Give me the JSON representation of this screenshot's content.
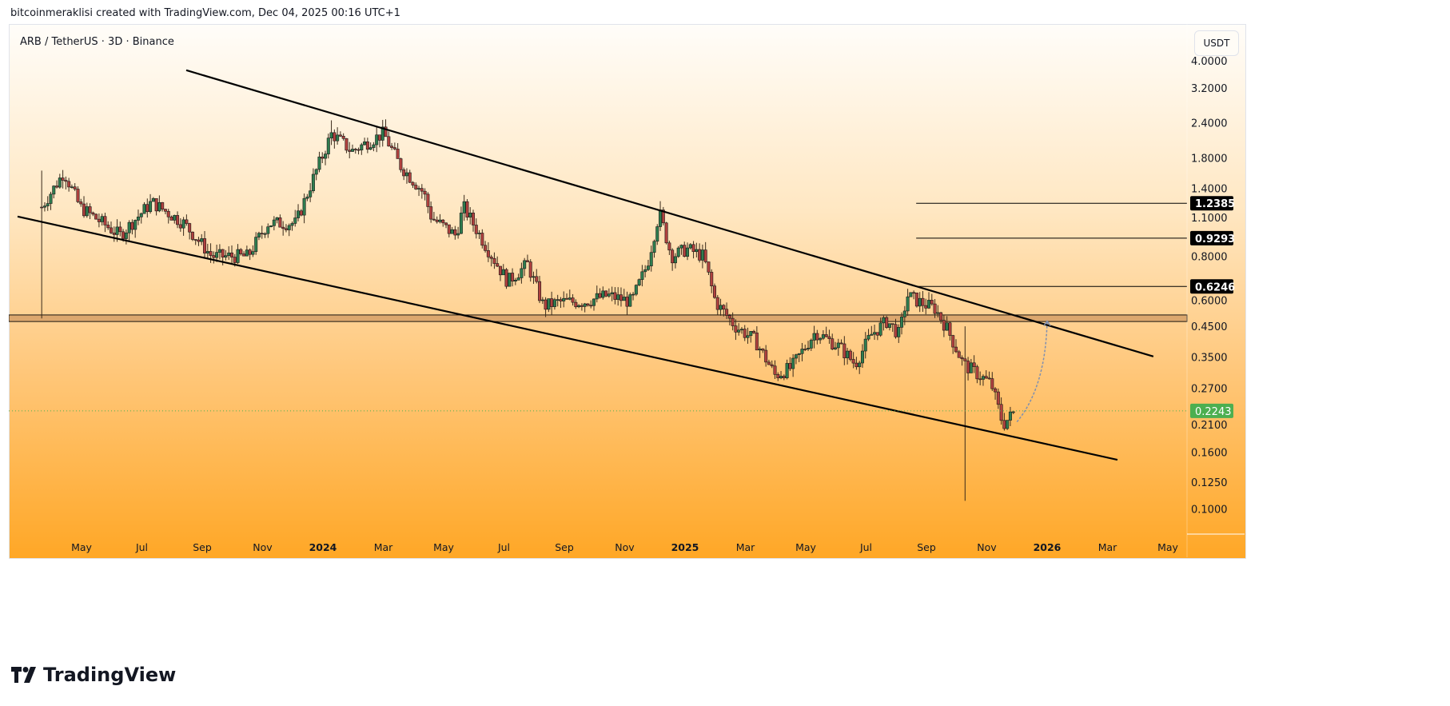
{
  "header": {
    "credit": "bitcoinmeraklisi created with TradingView.com, Dec 04, 2025 00:16 UTC+1"
  },
  "symbol": "ARB / TetherUS · 3D · Binance",
  "currency": "USDT",
  "brand": "TradingView",
  "colors": {
    "up": "#2e7d4f",
    "down": "#b0413e",
    "last": "#4caf50",
    "line": "#000000",
    "band": "#d9a36b"
  },
  "chart_data": {
    "type": "candlestick",
    "title": "ARB / TetherUS · 3D · Binance",
    "x_unit": "months since Jan 2023",
    "xlim": [
      -0.8,
      40.2
    ],
    "ylim_log": [
      0.082,
      5.2
    ],
    "y_scale": "log",
    "price_ticks": [
      "4.0000",
      "3.2000",
      "2.4000",
      "1.8000",
      "1.4000",
      "1.1000",
      "0.8000",
      "0.6000",
      "0.4500",
      "0.3500",
      "0.2700",
      "0.2100",
      "0.1600",
      "0.1250",
      "0.1000"
    ],
    "time_ticks": [
      {
        "m": 4,
        "label": "May"
      },
      {
        "m": 6,
        "label": "Jul"
      },
      {
        "m": 8,
        "label": "Sep"
      },
      {
        "m": 10,
        "label": "Nov"
      },
      {
        "m": 12,
        "label": "2024",
        "year": true
      },
      {
        "m": 14,
        "label": "Mar"
      },
      {
        "m": 16,
        "label": "May"
      },
      {
        "m": 18,
        "label": "Jul"
      },
      {
        "m": 20,
        "label": "Sep"
      },
      {
        "m": 22,
        "label": "Nov"
      },
      {
        "m": 24,
        "label": "2025",
        "year": true
      },
      {
        "m": 26,
        "label": "Mar"
      },
      {
        "m": 28,
        "label": "May"
      },
      {
        "m": 30,
        "label": "Jul"
      },
      {
        "m": 32,
        "label": "Sep"
      },
      {
        "m": 34,
        "label": "Nov"
      },
      {
        "m": 36,
        "label": "2026",
        "year": true
      },
      {
        "m": 38,
        "label": "Mar"
      },
      {
        "m": 40,
        "label": "May"
      }
    ],
    "close_path": [
      [
        2.68,
        1.2
      ],
      [
        3.42,
        1.6
      ],
      [
        3.95,
        1.2
      ],
      [
        5.27,
        0.95
      ],
      [
        6.33,
        1.25
      ],
      [
        7.39,
        1.05
      ],
      [
        8.32,
        0.8
      ],
      [
        9.51,
        0.8
      ],
      [
        10.17,
        1.05
      ],
      [
        11.1,
        1.05
      ],
      [
        11.76,
        1.6
      ],
      [
        12.29,
        2.2
      ],
      [
        12.95,
        1.9
      ],
      [
        14.01,
        2.2
      ],
      [
        14.54,
        1.7
      ],
      [
        15.34,
        1.35
      ],
      [
        15.6,
        1.1
      ],
      [
        16.4,
        0.95
      ],
      [
        16.66,
        1.2
      ],
      [
        17.46,
        0.85
      ],
      [
        18.12,
        0.65
      ],
      [
        18.78,
        0.75
      ],
      [
        19.31,
        0.53
      ],
      [
        19.84,
        0.55
      ],
      [
        20.64,
        0.55
      ],
      [
        21.43,
        0.58
      ],
      [
        22.23,
        0.55
      ],
      [
        22.75,
        0.75
      ],
      [
        23.15,
        1.15
      ],
      [
        23.55,
        0.8
      ],
      [
        24.08,
        0.85
      ],
      [
        24.61,
        0.8
      ],
      [
        25.01,
        0.55
      ],
      [
        25.67,
        0.45
      ],
      [
        26.33,
        0.4
      ],
      [
        26.99,
        0.3
      ],
      [
        27.52,
        0.32
      ],
      [
        28.32,
        0.43
      ],
      [
        29.11,
        0.38
      ],
      [
        29.64,
        0.33
      ],
      [
        30.17,
        0.42
      ],
      [
        30.7,
        0.47
      ],
      [
        31.1,
        0.42
      ],
      [
        31.36,
        0.58
      ],
      [
        31.76,
        0.55
      ],
      [
        32.29,
        0.52
      ],
      [
        32.69,
        0.44
      ],
      [
        33.22,
        0.33
      ],
      [
        34.15,
        0.28
      ],
      [
        34.54,
        0.2
      ],
      [
        34.94,
        0.2243
      ]
    ],
    "special_wicks": [
      {
        "m": 2.68,
        "high": 1.62,
        "low": 0.48
      },
      {
        "m": 33.25,
        "high": 0.45,
        "low": 0.107
      },
      {
        "m": 12.29,
        "high": 2.45,
        "low": 2.0
      },
      {
        "m": 23.15,
        "high": 1.26,
        "low": 1.0
      }
    ],
    "trendlines": [
      {
        "name": "channel-upper",
        "from": [
          7.47,
          3.7
        ],
        "to": [
          39.52,
          0.351
        ]
      },
      {
        "name": "channel-lower",
        "from": [
          1.88,
          1.11
        ],
        "to": [
          38.33,
          0.15
        ]
      }
    ],
    "support_band": {
      "high": 0.494,
      "low": 0.468
    },
    "levels": [
      {
        "value": 1.2385,
        "label": "1.2385",
        "from_m": 31.66
      },
      {
        "value": 0.9293,
        "label": "0.9293",
        "from_m": 31.66
      },
      {
        "value": 0.6246,
        "label": "0.6246",
        "from_m": 31.66
      }
    ],
    "last_price": {
      "value": 0.2243,
      "label": "0.2243"
    },
    "projection_arc": {
      "from": [
        35.0,
        0.205
      ],
      "to": [
        36.0,
        0.47
      ]
    }
  }
}
